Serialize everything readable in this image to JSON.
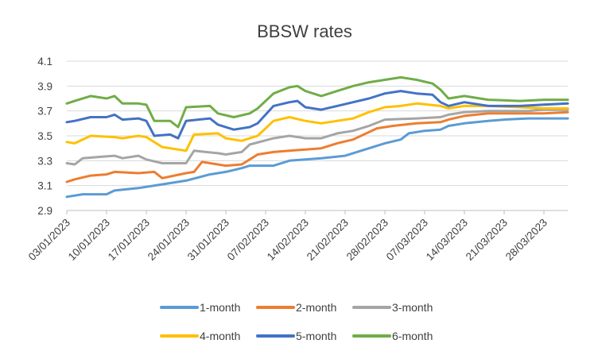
{
  "chart_data": {
    "type": "line",
    "title": "BBSW rates",
    "xlabel": "",
    "ylabel": "",
    "ylim": [
      2.9,
      4.1
    ],
    "yticks": [
      "2.9",
      "3.1",
      "3.3",
      "3.5",
      "3.7",
      "3.9",
      "4.1"
    ],
    "xlim": [
      0,
      63
    ],
    "x_tick_labels": [
      "03/01/2023",
      "10/01/2023",
      "17/01/2023",
      "24/01/2023",
      "31/01/2023",
      "07/02/2023",
      "14/02/2023",
      "21/02/2023",
      "28/02/2023",
      "07/03/2023",
      "14/03/2023",
      "21/03/2023",
      "28/03/2023"
    ],
    "grid": true,
    "legend_position": "bottom",
    "series": [
      {
        "name": "1-month",
        "color": "#5B9BD5",
        "points": [
          [
            0,
            3.01
          ],
          [
            2,
            3.03
          ],
          [
            5,
            3.03
          ],
          [
            6,
            3.06
          ],
          [
            9,
            3.08
          ],
          [
            12,
            3.11
          ],
          [
            15,
            3.14
          ],
          [
            18,
            3.19
          ],
          [
            20,
            3.21
          ],
          [
            22,
            3.24
          ],
          [
            23,
            3.26
          ],
          [
            26,
            3.26
          ],
          [
            28,
            3.3
          ],
          [
            32,
            3.32
          ],
          [
            35,
            3.34
          ],
          [
            40,
            3.44
          ],
          [
            42,
            3.47
          ],
          [
            43,
            3.52
          ],
          [
            45,
            3.54
          ],
          [
            47,
            3.55
          ],
          [
            48,
            3.58
          ],
          [
            50,
            3.6
          ],
          [
            53,
            3.62
          ],
          [
            55,
            3.63
          ],
          [
            58,
            3.64
          ],
          [
            63,
            3.64
          ]
        ]
      },
      {
        "name": "2-month",
        "color": "#ED7D31",
        "points": [
          [
            0,
            3.13
          ],
          [
            1,
            3.15
          ],
          [
            3,
            3.18
          ],
          [
            5,
            3.19
          ],
          [
            6,
            3.21
          ],
          [
            9,
            3.2
          ],
          [
            11,
            3.21
          ],
          [
            12,
            3.16
          ],
          [
            15,
            3.2
          ],
          [
            16,
            3.21
          ],
          [
            17,
            3.29
          ],
          [
            20,
            3.26
          ],
          [
            22,
            3.27
          ],
          [
            23,
            3.31
          ],
          [
            24,
            3.35
          ],
          [
            26,
            3.37
          ],
          [
            28,
            3.38
          ],
          [
            32,
            3.4
          ],
          [
            34,
            3.44
          ],
          [
            36,
            3.47
          ],
          [
            39,
            3.56
          ],
          [
            41,
            3.58
          ],
          [
            44,
            3.6
          ],
          [
            47,
            3.61
          ],
          [
            48,
            3.63
          ],
          [
            50,
            3.66
          ],
          [
            53,
            3.68
          ],
          [
            57,
            3.68
          ],
          [
            60,
            3.68
          ],
          [
            63,
            3.69
          ]
        ]
      },
      {
        "name": "3-month",
        "color": "#A5A5A5",
        "points": [
          [
            0,
            3.28
          ],
          [
            1,
            3.27
          ],
          [
            2,
            3.32
          ],
          [
            4,
            3.33
          ],
          [
            6,
            3.34
          ],
          [
            7,
            3.32
          ],
          [
            9,
            3.34
          ],
          [
            10,
            3.31
          ],
          [
            12,
            3.28
          ],
          [
            15,
            3.28
          ],
          [
            16,
            3.38
          ],
          [
            19,
            3.36
          ],
          [
            20,
            3.35
          ],
          [
            22,
            3.37
          ],
          [
            23,
            3.43
          ],
          [
            26,
            3.48
          ],
          [
            28,
            3.5
          ],
          [
            30,
            3.48
          ],
          [
            32,
            3.48
          ],
          [
            34,
            3.52
          ],
          [
            36,
            3.54
          ],
          [
            38,
            3.58
          ],
          [
            40,
            3.63
          ],
          [
            44,
            3.64
          ],
          [
            47,
            3.65
          ],
          [
            48,
            3.67
          ],
          [
            50,
            3.69
          ],
          [
            53,
            3.7
          ],
          [
            58,
            3.7
          ],
          [
            60,
            3.71
          ],
          [
            63,
            3.71
          ]
        ]
      },
      {
        "name": "4-month",
        "color": "#FFC000",
        "points": [
          [
            0,
            3.45
          ],
          [
            1,
            3.44
          ],
          [
            3,
            3.5
          ],
          [
            6,
            3.49
          ],
          [
            7,
            3.48
          ],
          [
            9,
            3.5
          ],
          [
            10,
            3.49
          ],
          [
            12,
            3.41
          ],
          [
            15,
            3.38
          ],
          [
            16,
            3.51
          ],
          [
            19,
            3.52
          ],
          [
            20,
            3.48
          ],
          [
            22,
            3.46
          ],
          [
            23,
            3.48
          ],
          [
            24,
            3.5
          ],
          [
            26,
            3.62
          ],
          [
            28,
            3.65
          ],
          [
            30,
            3.62
          ],
          [
            32,
            3.6
          ],
          [
            34,
            3.62
          ],
          [
            36,
            3.64
          ],
          [
            38,
            3.69
          ],
          [
            40,
            3.73
          ],
          [
            42,
            3.74
          ],
          [
            44,
            3.76
          ],
          [
            47,
            3.74
          ],
          [
            48,
            3.72
          ],
          [
            50,
            3.74
          ],
          [
            53,
            3.74
          ],
          [
            57,
            3.73
          ],
          [
            60,
            3.72
          ],
          [
            63,
            3.72
          ]
        ]
      },
      {
        "name": "5-month",
        "color": "#4472C4",
        "points": [
          [
            0,
            3.61
          ],
          [
            1,
            3.62
          ],
          [
            3,
            3.65
          ],
          [
            5,
            3.65
          ],
          [
            6,
            3.67
          ],
          [
            7,
            3.63
          ],
          [
            9,
            3.64
          ],
          [
            10,
            3.62
          ],
          [
            11,
            3.5
          ],
          [
            13,
            3.51
          ],
          [
            14,
            3.48
          ],
          [
            15,
            3.62
          ],
          [
            18,
            3.64
          ],
          [
            19,
            3.59
          ],
          [
            21,
            3.55
          ],
          [
            23,
            3.57
          ],
          [
            24,
            3.6
          ],
          [
            26,
            3.74
          ],
          [
            28,
            3.77
          ],
          [
            29,
            3.78
          ],
          [
            30,
            3.73
          ],
          [
            32,
            3.71
          ],
          [
            34,
            3.74
          ],
          [
            36,
            3.77
          ],
          [
            38,
            3.8
          ],
          [
            40,
            3.84
          ],
          [
            42,
            3.86
          ],
          [
            44,
            3.84
          ],
          [
            46,
            3.83
          ],
          [
            47,
            3.77
          ],
          [
            48,
            3.74
          ],
          [
            50,
            3.77
          ],
          [
            53,
            3.74
          ],
          [
            57,
            3.74
          ],
          [
            60,
            3.75
          ],
          [
            63,
            3.76
          ]
        ]
      },
      {
        "name": "6-month",
        "color": "#70AD47",
        "points": [
          [
            0,
            3.76
          ],
          [
            1,
            3.78
          ],
          [
            3,
            3.82
          ],
          [
            5,
            3.8
          ],
          [
            6,
            3.82
          ],
          [
            7,
            3.76
          ],
          [
            9,
            3.76
          ],
          [
            10,
            3.75
          ],
          [
            11,
            3.62
          ],
          [
            13,
            3.62
          ],
          [
            14,
            3.57
          ],
          [
            15,
            3.73
          ],
          [
            18,
            3.74
          ],
          [
            19,
            3.68
          ],
          [
            21,
            3.65
          ],
          [
            23,
            3.68
          ],
          [
            24,
            3.72
          ],
          [
            26,
            3.84
          ],
          [
            28,
            3.89
          ],
          [
            29,
            3.9
          ],
          [
            30,
            3.86
          ],
          [
            32,
            3.82
          ],
          [
            34,
            3.86
          ],
          [
            36,
            3.9
          ],
          [
            38,
            3.93
          ],
          [
            40,
            3.95
          ],
          [
            42,
            3.97
          ],
          [
            44,
            3.95
          ],
          [
            46,
            3.92
          ],
          [
            47,
            3.87
          ],
          [
            48,
            3.8
          ],
          [
            50,
            3.82
          ],
          [
            53,
            3.79
          ],
          [
            57,
            3.78
          ],
          [
            60,
            3.79
          ],
          [
            63,
            3.79
          ]
        ]
      }
    ]
  }
}
